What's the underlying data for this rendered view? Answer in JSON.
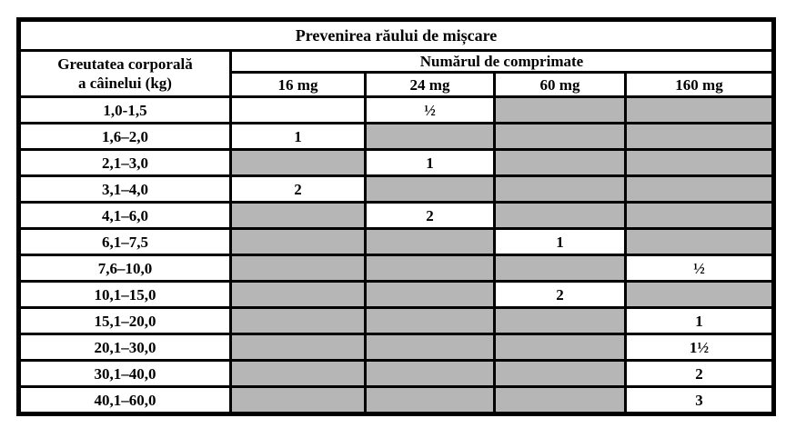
{
  "table": {
    "title": "Prevenirea răului de mișcare",
    "weight_header_line1": "Greutatea corporală",
    "weight_header_line2": "a câinelui (kg)",
    "tablets_header": "Numărul de comprimate",
    "dose_columns": [
      "16 mg",
      "24 mg",
      "60 mg",
      "160 mg"
    ],
    "rows": [
      {
        "weight": "1,0-1,5",
        "cells": [
          "",
          "½",
          null,
          null
        ]
      },
      {
        "weight": "1,6–2,0",
        "cells": [
          "1",
          null,
          null,
          null
        ]
      },
      {
        "weight": "2,1–3,0",
        "cells": [
          null,
          "1",
          null,
          null
        ]
      },
      {
        "weight": "3,1–4,0",
        "cells": [
          "2",
          null,
          null,
          null
        ]
      },
      {
        "weight": "4,1–6,0",
        "cells": [
          null,
          "2",
          null,
          null
        ]
      },
      {
        "weight": "6,1–7,5",
        "cells": [
          null,
          null,
          "1",
          null
        ]
      },
      {
        "weight": "7,6–10,0",
        "cells": [
          null,
          null,
          null,
          "½"
        ]
      },
      {
        "weight": "10,1–15,0",
        "cells": [
          null,
          null,
          "2",
          null
        ]
      },
      {
        "weight": "15,1–20,0",
        "cells": [
          null,
          null,
          null,
          "1"
        ]
      },
      {
        "weight": "20,1–30,0",
        "cells": [
          null,
          null,
          null,
          "1½"
        ]
      },
      {
        "weight": "30,1–40,0",
        "cells": [
          null,
          null,
          null,
          "2"
        ]
      },
      {
        "weight": "40,1–60,0",
        "cells": [
          null,
          null,
          null,
          "3"
        ]
      }
    ]
  },
  "colors": {
    "border": "#000000",
    "page_background": "#ffffff",
    "shaded_cell_tone": "#b0b0b0"
  }
}
